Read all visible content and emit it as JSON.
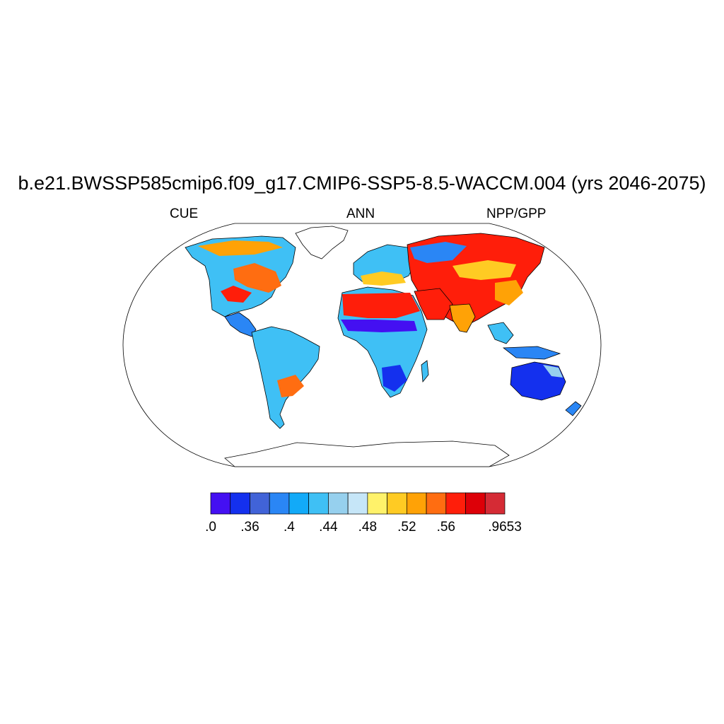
{
  "title": "b.e21.BWSSP585cmip6.f09_g17.CMIP6-SSP5-8.5-WACCM.004 (yrs 2046-2075)",
  "left_string": "CUE",
  "center_string": "ANN",
  "right_string": "NPP/GPP",
  "projection": "Robinson",
  "colorbar": {
    "colors": [
      "#4410f2",
      "#1430ee",
      "#4163d8",
      "#2a86f5",
      "#12aaf8",
      "#3fc0f5",
      "#96d0ee",
      "#c6e6f8",
      "#fff26a",
      "#ffcb23",
      "#ffa206",
      "#ff6d11",
      "#ff1e0a",
      "#dd0008",
      "#d52b35"
    ],
    "labels": [
      ".0",
      ".36",
      ".4",
      ".44",
      ".48",
      ".52",
      ".56",
      ".9653"
    ],
    "label_boundaries": [
      0,
      2,
      4,
      6,
      8,
      10,
      12,
      15
    ]
  }
}
